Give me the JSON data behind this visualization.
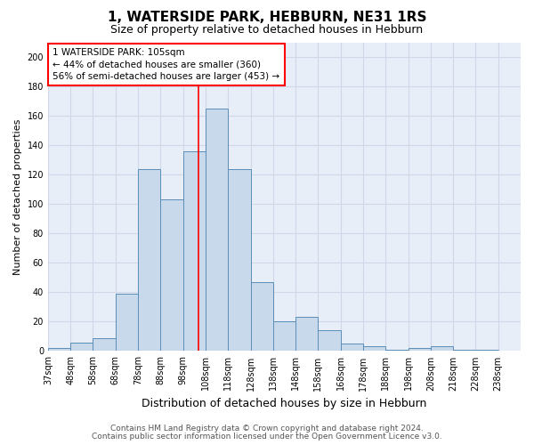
{
  "title": "1, WATERSIDE PARK, HEBBURN, NE31 1RS",
  "subtitle": "Size of property relative to detached houses in Hebburn",
  "xlabel": "Distribution of detached houses by size in Hebburn",
  "ylabel": "Number of detached properties",
  "categories": [
    "37sqm",
    "48sqm",
    "58sqm",
    "68sqm",
    "78sqm",
    "88sqm",
    "98sqm",
    "108sqm",
    "118sqm",
    "128sqm",
    "138sqm",
    "148sqm",
    "158sqm",
    "168sqm",
    "178sqm",
    "188sqm",
    "198sqm",
    "208sqm",
    "218sqm",
    "228sqm",
    "238sqm"
  ],
  "values": [
    2,
    6,
    9,
    39,
    124,
    103,
    136,
    165,
    124,
    47,
    20,
    23,
    14,
    5,
    3,
    1,
    2,
    3,
    1,
    1
  ],
  "bar_color": "#c9d9ec",
  "bar_edge_color": "#5b8db8",
  "vline_color": "red",
  "annotation_text": "1 WATERSIDE PARK: 105sqm\n← 44% of detached houses are smaller (360)\n56% of semi-detached houses are larger (453) →",
  "annotation_box_color": "white",
  "annotation_box_edge_color": "red",
  "ylim": [
    0,
    210
  ],
  "yticks": [
    0,
    20,
    40,
    60,
    80,
    100,
    120,
    140,
    160,
    180,
    200
  ],
  "grid_color": "#d0d8e8",
  "background_color": "#e8eef8",
  "footer_line1": "Contains HM Land Registry data © Crown copyright and database right 2024.",
  "footer_line2": "Contains public sector information licensed under the Open Government Licence v3.0.",
  "title_fontsize": 11,
  "subtitle_fontsize": 9,
  "xlabel_fontsize": 9,
  "ylabel_fontsize": 8,
  "tick_fontsize": 7,
  "annotation_fontsize": 7.5,
  "footer_fontsize": 6.5
}
